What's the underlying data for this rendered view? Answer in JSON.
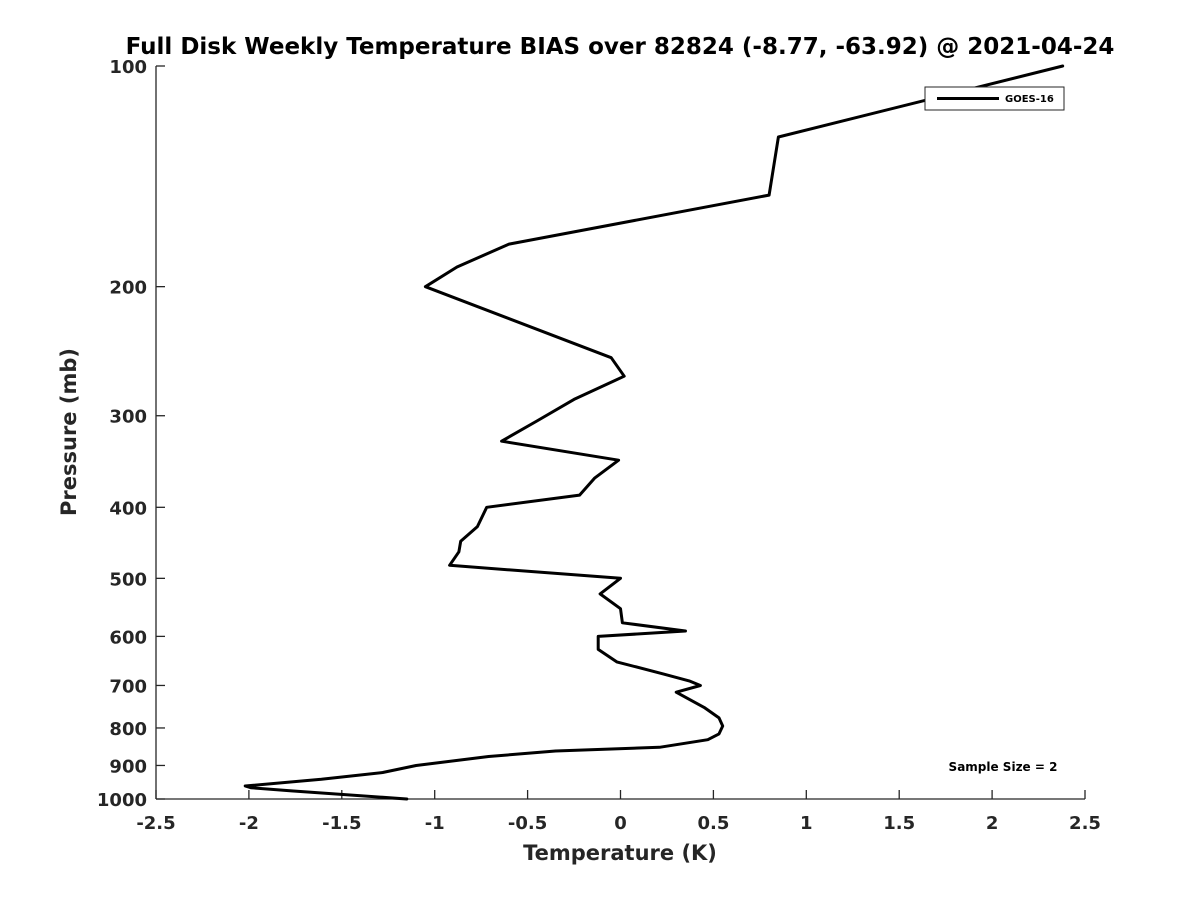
{
  "chart_data": {
    "type": "line",
    "title": "Full Disk Weekly Temperature BIAS over 82824 (-8.77, -63.92) @ 2021-04-24",
    "xlabel": "Temperature (K)",
    "ylabel": "Pressure (mb)",
    "xlim": [
      -2.5,
      2.5
    ],
    "ylim": [
      1000,
      100
    ],
    "y_scale": "log",
    "y_reversed": true,
    "grid": false,
    "x_ticks": [
      -2.5,
      -2,
      -1.5,
      -1,
      -0.5,
      0,
      0.5,
      1,
      1.5,
      2,
      2.5
    ],
    "x_tick_labels": [
      "-2.5",
      "-2",
      "-1.5",
      "-1",
      "-0.5",
      "0",
      "0.5",
      "1",
      "1.5",
      "2",
      "2.5"
    ],
    "y_ticks": [
      100,
      200,
      300,
      400,
      500,
      600,
      700,
      800,
      900,
      1000
    ],
    "y_tick_labels": [
      "100",
      "200",
      "300",
      "400",
      "500",
      "600",
      "700",
      "800",
      "900",
      "1000"
    ],
    "legend": {
      "position": "top-right",
      "entries": [
        "GOES-16"
      ]
    },
    "annotation": "Sample Size = 2",
    "series": [
      {
        "name": "GOES-16",
        "color": "#000000",
        "points": [
          [
            2.38,
            100
          ],
          [
            0.85,
            125
          ],
          [
            0.8,
            150
          ],
          [
            -0.6,
            175
          ],
          [
            -0.88,
            188
          ],
          [
            -1.05,
            200
          ],
          [
            -0.05,
            250
          ],
          [
            0.02,
            265
          ],
          [
            -0.25,
            285
          ],
          [
            -0.45,
            305
          ],
          [
            -0.64,
            325
          ],
          [
            -0.01,
            345
          ],
          [
            -0.14,
            365
          ],
          [
            -0.22,
            385
          ],
          [
            -0.72,
            400
          ],
          [
            -0.77,
            425
          ],
          [
            -0.86,
            445
          ],
          [
            -0.87,
            460
          ],
          [
            -0.92,
            480
          ],
          [
            0.0,
            500
          ],
          [
            -0.11,
            525
          ],
          [
            0.0,
            550
          ],
          [
            0.01,
            575
          ],
          [
            0.35,
            590
          ],
          [
            -0.12,
            600
          ],
          [
            -0.12,
            625
          ],
          [
            -0.02,
            650
          ],
          [
            0.23,
            675
          ],
          [
            0.37,
            690
          ],
          [
            0.43,
            700
          ],
          [
            0.3,
            715
          ],
          [
            0.45,
            750
          ],
          [
            0.53,
            775
          ],
          [
            0.55,
            795
          ],
          [
            0.53,
            815
          ],
          [
            0.47,
            830
          ],
          [
            0.21,
            850
          ],
          [
            -0.35,
            860
          ],
          [
            -0.71,
            875
          ],
          [
            -1.1,
            900
          ],
          [
            -1.28,
            920
          ],
          [
            -1.61,
            940
          ],
          [
            -2.02,
            960
          ],
          [
            -1.99,
            965
          ],
          [
            -1.77,
            975
          ],
          [
            -1.15,
            1000
          ]
        ]
      }
    ]
  }
}
